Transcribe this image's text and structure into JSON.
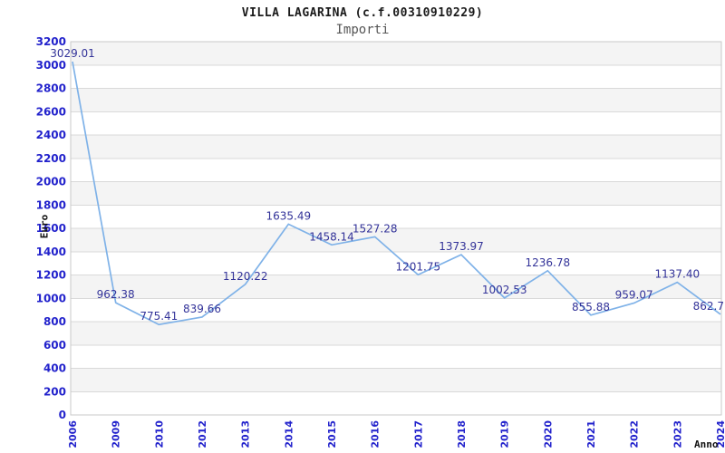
{
  "chart_data": {
    "type": "line",
    "title": "VILLA LAGARINA (c.f.00310910229)",
    "subtitle": "Importi",
    "xlabel": "Anno",
    "ylabel": "Euro",
    "x": [
      "2006",
      "2009",
      "2010",
      "2012",
      "2013",
      "2014",
      "2015",
      "2016",
      "2017",
      "2018",
      "2019",
      "2020",
      "2021",
      "2022",
      "2023",
      "2024"
    ],
    "values": [
      3029.01,
      962.38,
      775.41,
      839.66,
      1120.22,
      1635.49,
      1458.14,
      1527.28,
      1201.75,
      1373.97,
      1002.53,
      1236.78,
      855.88,
      959.07,
      1137.4,
      862.7
    ],
    "point_labels": [
      "3029.01",
      "962.38",
      "775.41",
      "839.66",
      "1120.22",
      "1635.49",
      "1458.14",
      "1527.28",
      "1201.75",
      "1373.97",
      "1002.53",
      "1236.78",
      "855.88",
      "959.07",
      "1137.40",
      "862.7"
    ],
    "ylim": [
      0,
      3200
    ],
    "ytick_step": 200,
    "grid": true,
    "legend": "none",
    "colors": {
      "line": "#7fb2e8",
      "axis_tick_text": "#2222cc",
      "point_label_text": "#333399",
      "band_fill": "#f4f4f4",
      "band_alt_fill": "#ffffff",
      "gridline": "#d9d9d9",
      "plot_border": "#c9c9c9",
      "title_text": "#1a1a1a",
      "subtitle_text": "#555555",
      "axis_title_text": "#111111"
    }
  }
}
